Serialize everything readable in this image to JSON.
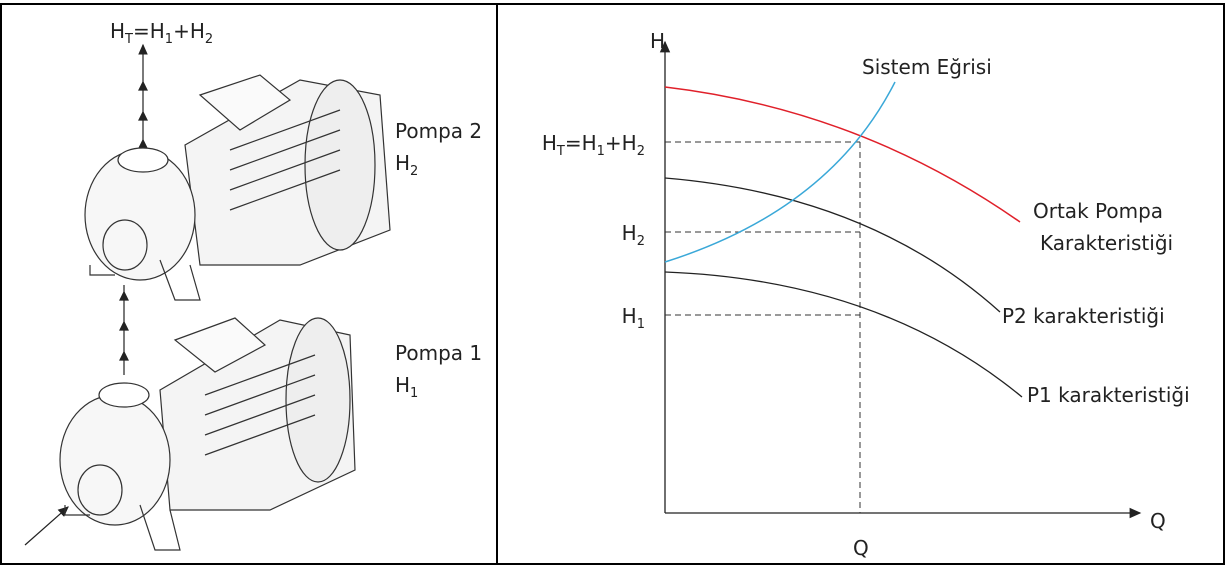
{
  "left": {
    "top_label": [
      "H",
      "T",
      "=H",
      "1",
      "+H",
      "2"
    ],
    "pump2": {
      "name": "Pompa 2",
      "head": [
        "H",
        "2"
      ]
    },
    "pump1": {
      "name": "Pompa 1",
      "head": [
        "H",
        "1"
      ]
    }
  },
  "right": {
    "y_axis": "H",
    "x_axis": "Q",
    "q_label": "Q",
    "system_curve": "Sistem Eğrisi",
    "combined_curve": [
      "Ortak Pompa",
      "Karakteristiği"
    ],
    "p2_curve": "P2 karakteristiği",
    "p1_curve": "P1 karakteristiği",
    "levels": [
      [
        "H",
        "T",
        "=H",
        "1",
        "+H",
        "2"
      ],
      [
        "H",
        "2"
      ],
      [
        "H",
        "1"
      ]
    ]
  }
}
